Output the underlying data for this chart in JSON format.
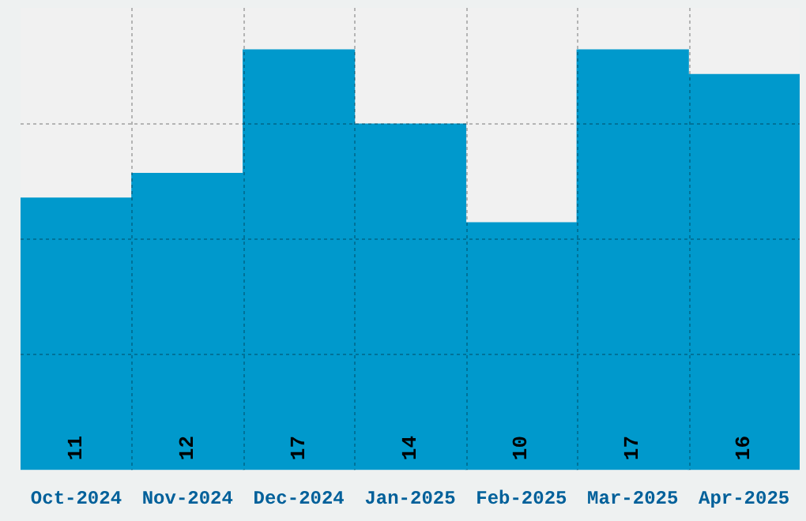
{
  "chart_data": {
    "type": "bar",
    "categories": [
      "Oct-2024",
      "Nov-2024",
      "Dec-2024",
      "Jan-2025",
      "Feb-2025",
      "Mar-2025",
      "Apr-2025"
    ],
    "values": [
      11,
      12,
      17,
      14,
      10,
      17,
      16
    ],
    "color": "#0099cc",
    "ylim": [
      0,
      18.7
    ],
    "tick_labels": "x",
    "data_labels": true,
    "grid": true
  }
}
